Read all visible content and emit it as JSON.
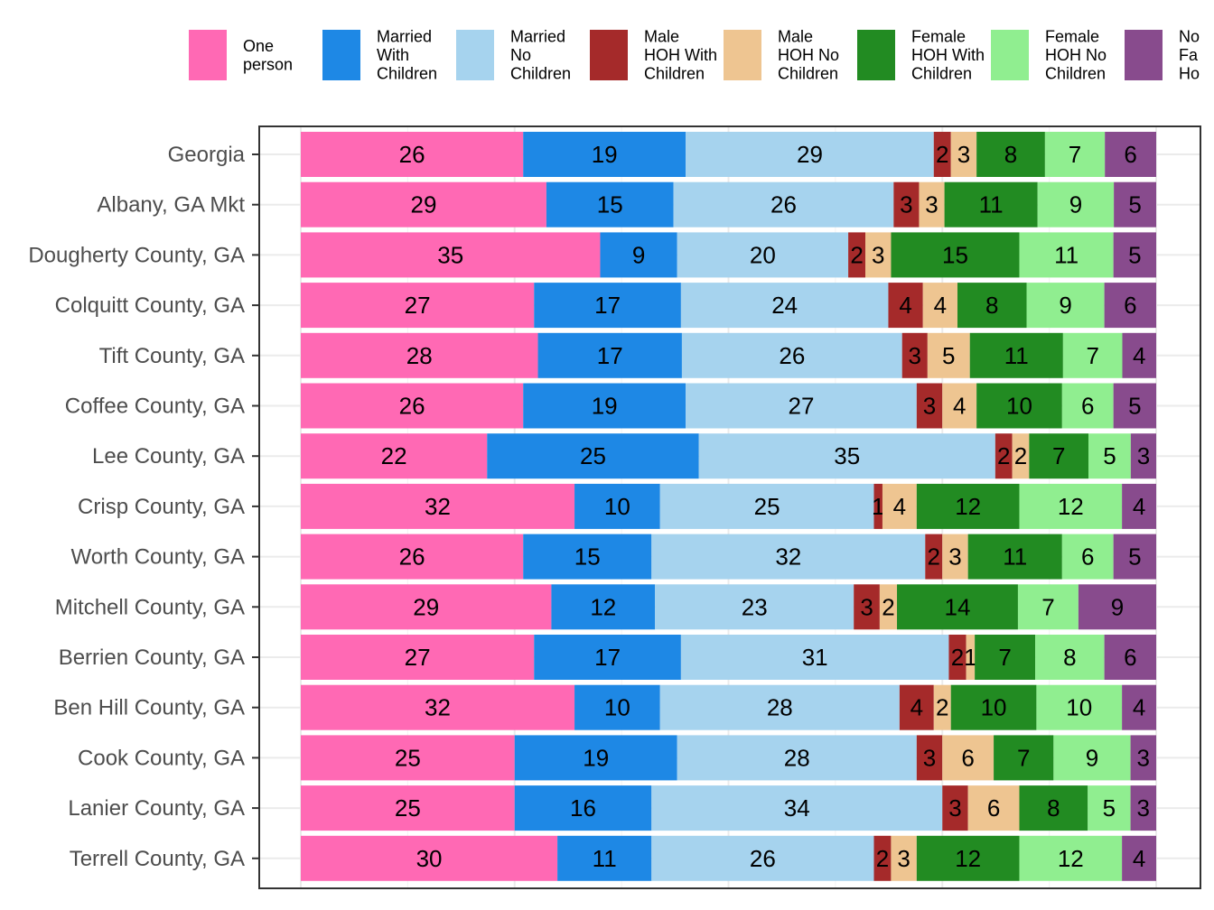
{
  "chart_data": {
    "type": "bar",
    "orientation": "horizontal",
    "stacked": true,
    "grid": true,
    "legend_position": "top",
    "categories": [
      "Georgia",
      "Albany, GA Mkt",
      "Dougherty County, GA",
      "Colquitt County, GA",
      "Tift County, GA",
      "Coffee County, GA",
      "Lee County, GA",
      "Crisp County, GA",
      "Worth County, GA",
      "Mitchell County, GA",
      "Berrien County, GA",
      "Ben Hill County, GA",
      "Cook County, GA",
      "Lanier County, GA",
      "Terrell County, GA"
    ],
    "series": [
      {
        "name": "One person",
        "legend_lines": [
          "One",
          "person"
        ],
        "color": "#ff69b4",
        "values": [
          26,
          29,
          35,
          27,
          28,
          26,
          22,
          32,
          26,
          29,
          27,
          32,
          25,
          25,
          30
        ]
      },
      {
        "name": "Married With Children",
        "legend_lines": [
          "Married",
          "With",
          "Children"
        ],
        "color": "#1e88e5",
        "values": [
          19,
          15,
          9,
          17,
          17,
          19,
          25,
          10,
          15,
          12,
          17,
          10,
          19,
          16,
          11
        ]
      },
      {
        "name": "Married No Children",
        "legend_lines": [
          "Married",
          "No",
          "Children"
        ],
        "color": "#a6d3ee",
        "values": [
          29,
          26,
          20,
          24,
          26,
          27,
          35,
          25,
          32,
          23,
          31,
          28,
          28,
          34,
          26
        ]
      },
      {
        "name": "Male HOH With Children",
        "legend_lines": [
          "Male",
          "HOH With",
          "Children"
        ],
        "color": "#a52a2a",
        "values": [
          2,
          3,
          2,
          4,
          3,
          3,
          2,
          1,
          2,
          3,
          2,
          4,
          3,
          3,
          2
        ]
      },
      {
        "name": "Male HOH No Children",
        "legend_lines": [
          "Male",
          "HOH No",
          "Children"
        ],
        "color": "#eec591",
        "values": [
          3,
          3,
          3,
          4,
          5,
          4,
          2,
          4,
          3,
          2,
          1,
          2,
          6,
          6,
          3
        ]
      },
      {
        "name": "Female HOH With Children",
        "legend_lines": [
          "Female",
          "HOH With",
          "Children"
        ],
        "color": "#228b22",
        "values": [
          8,
          11,
          15,
          8,
          11,
          10,
          7,
          12,
          11,
          14,
          7,
          10,
          7,
          8,
          12
        ]
      },
      {
        "name": "Female HOH No Children",
        "legend_lines": [
          "Female",
          "HOH No",
          "Children"
        ],
        "color": "#90ee90",
        "values": [
          7,
          9,
          11,
          9,
          7,
          6,
          5,
          12,
          6,
          7,
          8,
          10,
          9,
          5,
          12
        ]
      },
      {
        "name": "Non Family Household",
        "legend_lines": [
          "No",
          "Fa",
          "Ho"
        ],
        "color": "#884b8d",
        "values": [
          6,
          5,
          5,
          6,
          4,
          5,
          3,
          4,
          5,
          9,
          6,
          4,
          3,
          3,
          4
        ]
      }
    ],
    "xlim": [
      0,
      100
    ],
    "title": "",
    "xlabel": "",
    "ylabel": ""
  }
}
